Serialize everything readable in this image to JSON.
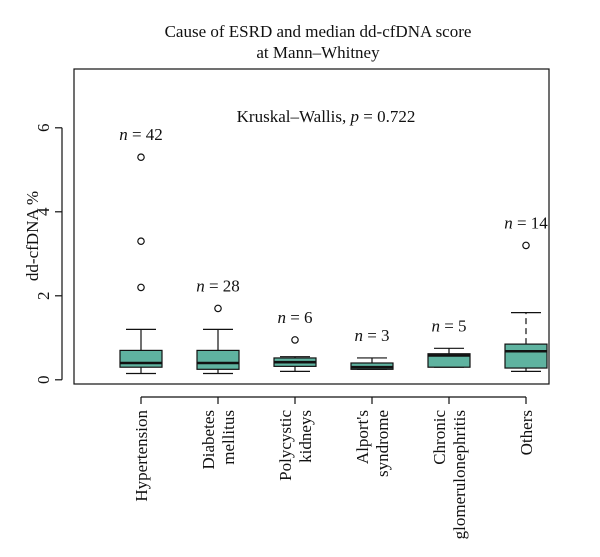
{
  "chart_data": {
    "type": "boxplot",
    "title_lines": [
      "Cause of ESRD and median dd-cfDNA score",
      "at Mann–Whitney"
    ],
    "ylabel": "dd-cfDNA %",
    "ylim": [
      -0.1,
      7.4
    ],
    "yticks": [
      0,
      2,
      4,
      6
    ],
    "annotation": {
      "prefix": "Kruskal–Wallis, ",
      "p_symbol": "p",
      "suffix": " = 0.722"
    },
    "box_color": "#5fb3a0",
    "groups": [
      {
        "label_lines": [
          "Hypertension"
        ],
        "n_label": "n = 42",
        "whisker_low": 0.15,
        "q1": 0.3,
        "median": 0.4,
        "q3": 0.7,
        "whisker_high": 1.2,
        "outliers": [
          2.2,
          3.3,
          5.3
        ],
        "dashed_upper": false
      },
      {
        "label_lines": [
          "Diabetes",
          "mellitus"
        ],
        "n_label": "n = 28",
        "whisker_low": 0.15,
        "q1": 0.25,
        "median": 0.4,
        "q3": 0.7,
        "whisker_high": 1.2,
        "outliers": [
          1.7
        ],
        "dashed_upper": false
      },
      {
        "label_lines": [
          "Polycystic",
          "kidneys"
        ],
        "n_label": "n = 6",
        "whisker_low": 0.2,
        "q1": 0.32,
        "median": 0.42,
        "q3": 0.52,
        "whisker_high": 0.55,
        "outliers": [
          0.95
        ],
        "dashed_upper": false
      },
      {
        "label_lines": [
          "Alport's",
          "syndrome"
        ],
        "n_label": "n = 3",
        "whisker_low": 0.25,
        "q1": 0.25,
        "median": 0.3,
        "q3": 0.4,
        "whisker_high": 0.52,
        "outliers": [],
        "dashed_upper": false
      },
      {
        "label_lines": [
          "Chronic",
          "glomerulonephritis"
        ],
        "n_label": "n = 5",
        "whisker_low": 0.3,
        "q1": 0.3,
        "median": 0.58,
        "q3": 0.62,
        "whisker_high": 0.75,
        "outliers": [],
        "dashed_upper": false
      },
      {
        "label_lines": [
          "Others"
        ],
        "n_label": "n = 14",
        "whisker_low": 0.2,
        "q1": 0.28,
        "median": 0.68,
        "q3": 0.85,
        "whisker_high": 1.6,
        "outliers": [
          3.2
        ],
        "dashed_upper": true
      }
    ]
  }
}
